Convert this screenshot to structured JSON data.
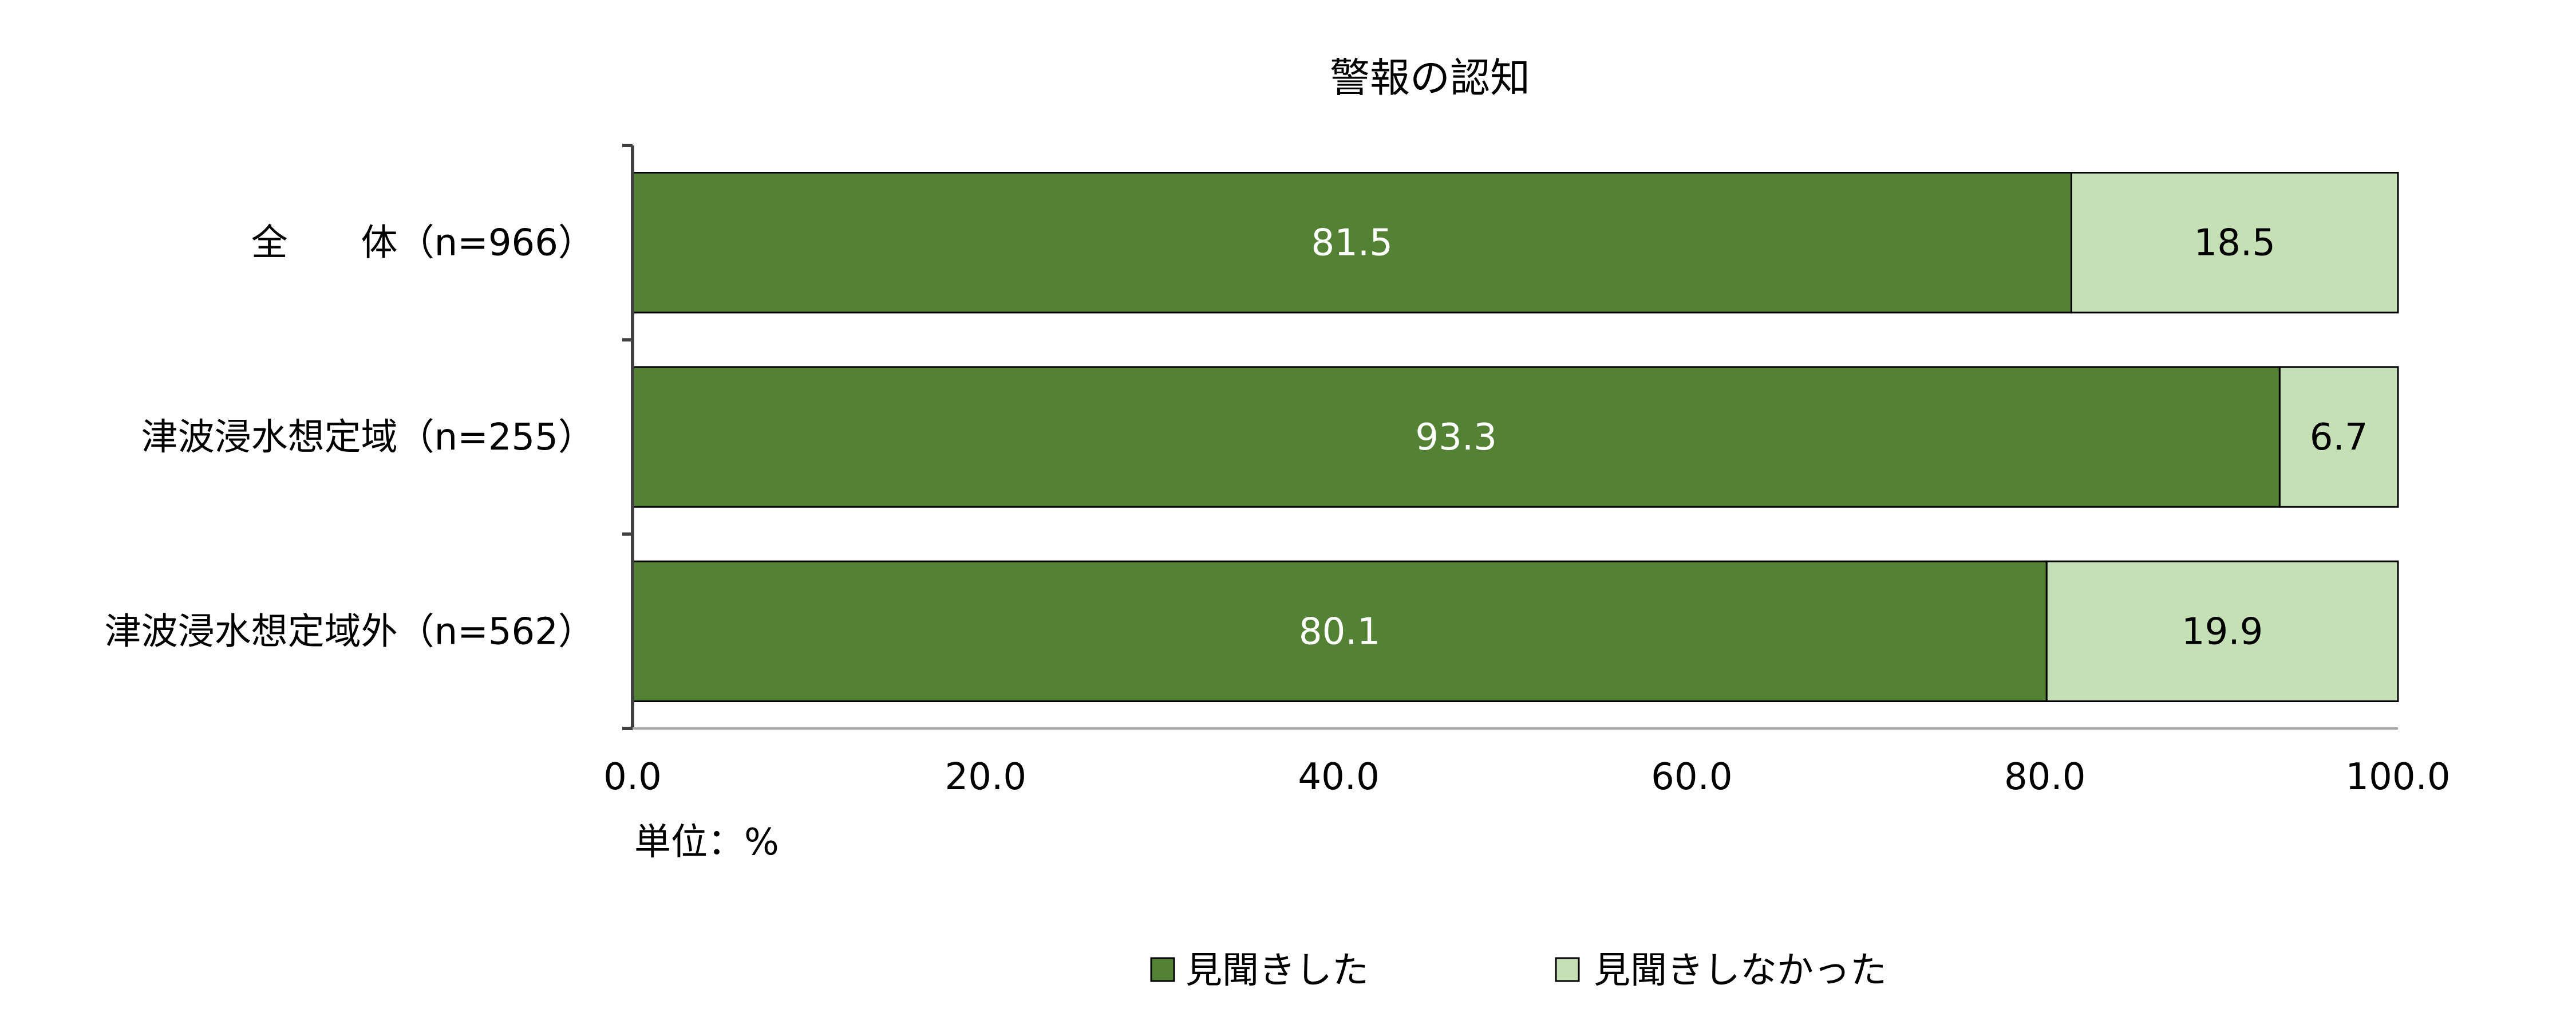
{
  "chart_data": {
    "type": "bar",
    "orientation": "horizontal",
    "stacked": true,
    "title": "警報の認知",
    "unit_label": "単位：%",
    "categories": [
      "全　　体（n=966）",
      "津波浸水想定域（n=255）",
      "津波浸水想定域外（n=562）"
    ],
    "series": [
      {
        "name": "見聞きした",
        "values": [
          81.5,
          93.3,
          80.1
        ],
        "color": "#548235",
        "label_color": "#FFFFFF"
      },
      {
        "name": "見聞きしなかった",
        "values": [
          18.5,
          6.7,
          19.9
        ],
        "color": "#C5E0B4",
        "label_color": "#000000"
      }
    ],
    "xlim": [
      0,
      100
    ],
    "xticks": [
      "0.0",
      "20.0",
      "40.0",
      "60.0",
      "80.0",
      "100.0"
    ],
    "grid": false,
    "legend_position": "bottom"
  }
}
